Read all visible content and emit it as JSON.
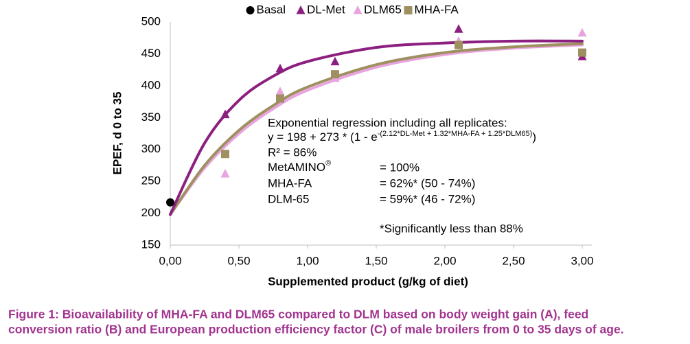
{
  "chart_data": {
    "type": "scatter",
    "y_label": "EPEF, d 0 to 35",
    "x_label": "Supplemented product (g/kg of diet)",
    "xlim": [
      0,
      3
    ],
    "xticks": [
      {
        "value": 0,
        "label": "0,00"
      },
      {
        "value": 0.5,
        "label": "0,50"
      },
      {
        "value": 1,
        "label": "1,00"
      },
      {
        "value": 1.5,
        "label": "1,50"
      },
      {
        "value": 2,
        "label": "2,00"
      },
      {
        "value": 2.5,
        "label": "2,50"
      },
      {
        "value": 3,
        "label": "3,00"
      }
    ],
    "ylim": [
      150,
      500
    ],
    "yticks": [
      150,
      200,
      250,
      300,
      350,
      400,
      450,
      500
    ],
    "grid": false,
    "legend": "top",
    "series": [
      {
        "name": "Basal",
        "color": "#000000",
        "marker": "circle",
        "x": [
          0
        ],
        "values": [
          217
        ]
      },
      {
        "name": "DL-Met",
        "color": "#8c1f80",
        "marker": "triangle",
        "x": [
          0.4,
          0.8,
          1.2,
          2.1,
          3.0
        ],
        "values": [
          355,
          427,
          438,
          489,
          446
        ]
      },
      {
        "name": "DLM65",
        "color": "#e9a4df",
        "marker": "triangle",
        "x": [
          0.4,
          0.8,
          1.2,
          2.1,
          3.0
        ],
        "values": [
          262,
          391,
          412,
          470,
          483
        ]
      },
      {
        "name": "MHA-FA",
        "color": "#9e9060",
        "marker": "square",
        "x": [
          0.4,
          0.8,
          1.2,
          2.1,
          3.0
        ],
        "values": [
          293,
          380,
          418,
          464,
          452
        ]
      }
    ],
    "fits": [
      {
        "color": "#e9a4df",
        "x": [
          0,
          0.25,
          0.5,
          0.75,
          1,
          1.5,
          2,
          2.5,
          3
        ],
        "values": [
          198,
          271,
          325,
          364,
          393,
          429,
          449,
          459,
          464
        ]
      },
      {
        "color": "#9e9060",
        "x": [
          0,
          0.25,
          0.5,
          0.75,
          1,
          1.5,
          2,
          2.5,
          3
        ],
        "values": [
          198,
          275,
          330,
          369,
          398,
          433,
          452,
          461,
          466
        ]
      },
      {
        "color": "#8c1f80",
        "x": [
          0,
          0.25,
          0.5,
          0.75,
          1,
          1.5,
          2,
          2.5,
          3
        ],
        "values": [
          198,
          310,
          377,
          415,
          438,
          460,
          467,
          470,
          470
        ]
      }
    ],
    "annotation": {
      "heading": "Exponential regression including all replicates:",
      "equation": {
        "text": "y = 198 + 273 * (1 - e",
        "exponent": "-(2.12*DL-Met + 1.32*MHA-FA + 1.25*DLM65)",
        "close": ")"
      },
      "r2": "R² = 86%",
      "rows": [
        {
          "label": "MetAMINO",
          "sup": "®",
          "value": "= 100%"
        },
        {
          "label": "MHA-FA",
          "value": "=  62%* (50 - 74%)"
        },
        {
          "label": "DLM-65",
          "value": "=  59%* (46 - 72%)"
        }
      ],
      "footnote": "*Significantly less than 88%"
    },
    "caption": [
      "Figure 1: Bioavailability of MHA-FA and DLM65 compared to DLM based on body weight gain (A), feed",
      "conversion ratio (B) and European production efficiency factor (C) of male broilers from 0 to 35 days of age."
    ]
  }
}
